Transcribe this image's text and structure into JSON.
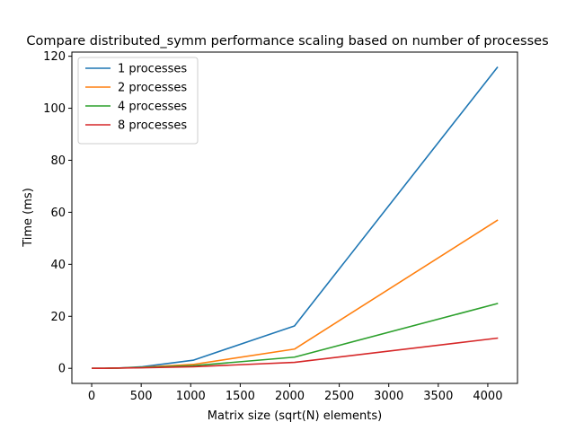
{
  "chart_data": {
    "type": "line",
    "title": "Compare distributed_symm performance scaling based on number of processes",
    "xlabel": "Matrix size (sqrt(N) elements)",
    "ylabel": "Time (ms)",
    "xlim": [
      -200,
      4300
    ],
    "ylim": [
      -5.8,
      121.6
    ],
    "xticks": [
      0,
      500,
      1000,
      1500,
      2000,
      2500,
      3000,
      3500,
      4000
    ],
    "yticks": [
      0,
      20,
      40,
      60,
      80,
      100,
      120
    ],
    "grid": false,
    "legend_position": "top-left",
    "x": [
      8,
      16,
      32,
      64,
      128,
      256,
      512,
      1024,
      2048,
      4096
    ],
    "series": [
      {
        "name": "1 processes",
        "color": "#1f77b4",
        "values": [
          0.0,
          0.0,
          0.0,
          0.0,
          0.0,
          0.1,
          0.6,
          3.1,
          16.3,
          115.7
        ]
      },
      {
        "name": "2 processes",
        "color": "#ff7f0e",
        "values": [
          0.0,
          0.0,
          0.0,
          0.0,
          0.0,
          0.1,
          0.4,
          1.5,
          7.4,
          56.9
        ]
      },
      {
        "name": "4 processes",
        "color": "#2ca02c",
        "values": [
          0.0,
          0.0,
          0.0,
          0.0,
          0.0,
          0.1,
          0.3,
          1.0,
          4.3,
          24.9
        ]
      },
      {
        "name": "8 processes",
        "color": "#d62728",
        "values": [
          0.0,
          0.0,
          0.0,
          0.0,
          0.0,
          0.1,
          0.2,
          0.6,
          2.3,
          11.6
        ]
      }
    ]
  }
}
